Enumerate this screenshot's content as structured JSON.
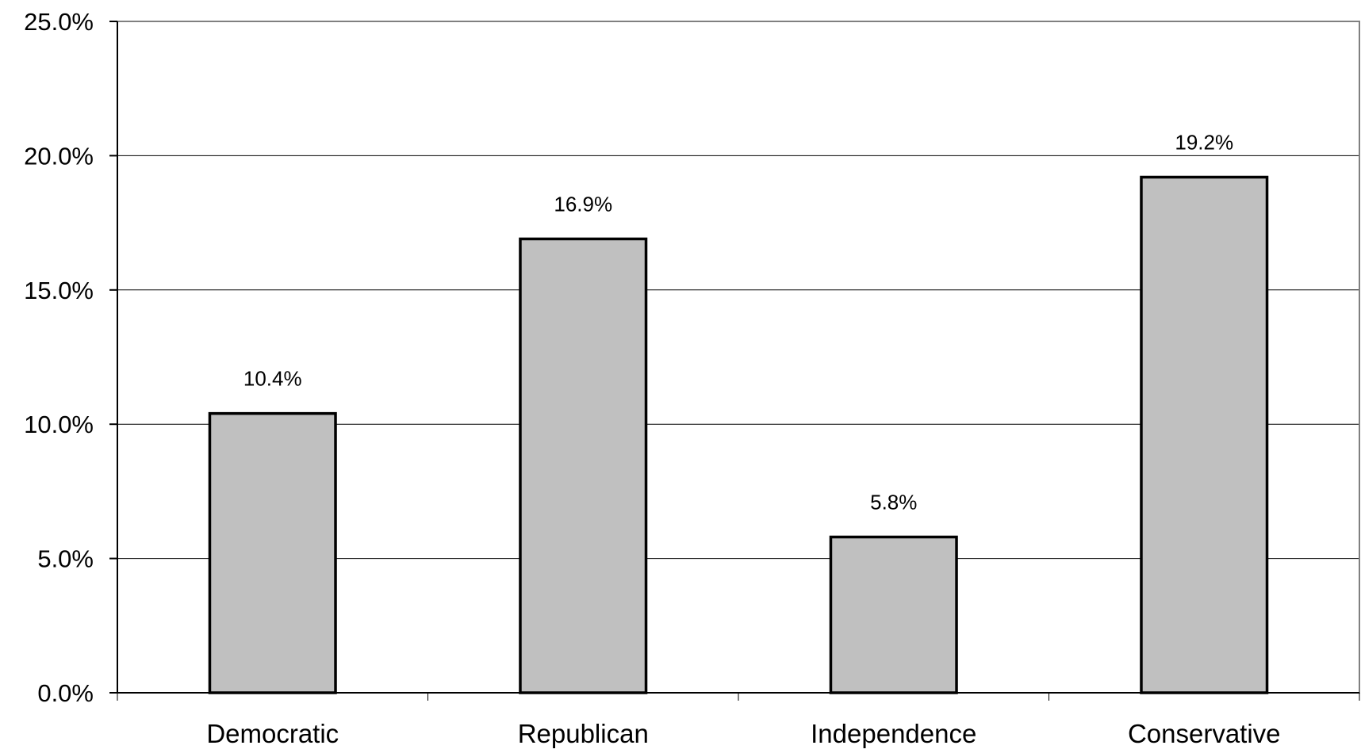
{
  "chart_data": {
    "type": "bar",
    "title": "",
    "xlabel": "",
    "ylabel": "",
    "categories": [
      "Democratic",
      "Republican",
      "Independence",
      "Conservative"
    ],
    "values": [
      10.4,
      16.9,
      5.8,
      19.2
    ],
    "data_labels": [
      "10.4%",
      "16.9%",
      "5.8%",
      "19.2%"
    ],
    "ylim": [
      0,
      25
    ],
    "yticks": [
      0,
      5,
      10,
      15,
      20,
      25
    ],
    "ytick_labels": [
      "0.0%",
      "5.0%",
      "10.0%",
      "15.0%",
      "20.0%",
      "25.0%"
    ],
    "grid": true,
    "legend": "none",
    "bar_color": "#c0c0c0",
    "bar_edge_color": "#000000"
  }
}
